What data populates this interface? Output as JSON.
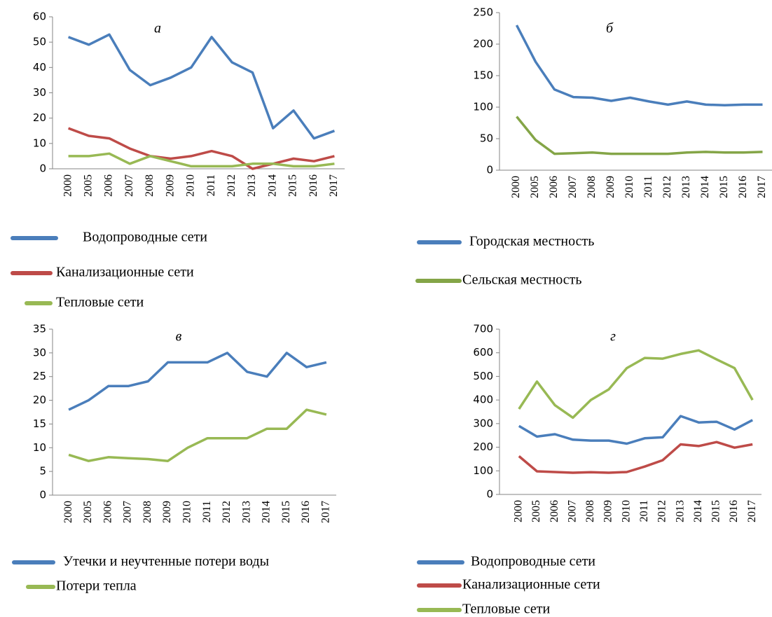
{
  "chart_data": [
    {
      "type": "line",
      "title": "а",
      "categories": [
        "2000",
        "2005",
        "2006",
        "2007",
        "2008",
        "2009",
        "2010",
        "2011",
        "2012",
        "2013",
        "2014",
        "2015",
        "2016",
        "2017"
      ],
      "series": [
        {
          "name": "Водопроводные сети",
          "color": "#4a7ebb",
          "values": [
            52,
            49,
            53,
            39,
            33,
            36,
            40,
            52,
            42,
            38,
            16,
            23,
            12,
            15
          ]
        },
        {
          "name": "Канализационные сети",
          "color": "#be4b48",
          "values": [
            16,
            13,
            12,
            8,
            5,
            4,
            5,
            7,
            5,
            0,
            2,
            4,
            3,
            5
          ]
        },
        {
          "name": "Тепловые сети",
          "color": "#98b954",
          "values": [
            5,
            5,
            6,
            2,
            5,
            3,
            1,
            1,
            1,
            2,
            2,
            1,
            1,
            2
          ]
        }
      ],
      "ylim": [
        0,
        60
      ],
      "yticks": [
        0,
        10,
        20,
        30,
        40,
        50,
        60
      ]
    },
    {
      "type": "line",
      "title": "б",
      "categories": [
        "2000",
        "2005",
        "2006",
        "2007",
        "2008",
        "2009",
        "2010",
        "2011",
        "2012",
        "2013",
        "2014",
        "2015",
        "2016",
        "2017"
      ],
      "series": [
        {
          "name": "Городская местность",
          "color": "#4a7ebb",
          "values": [
            230,
            172,
            128,
            116,
            115,
            110,
            115,
            109,
            104,
            109,
            104,
            103,
            104,
            104
          ]
        },
        {
          "name": "Сельская местность",
          "color": "#84a547",
          "values": [
            85,
            48,
            26,
            27,
            28,
            26,
            26,
            26,
            26,
            28,
            29,
            28,
            28,
            29
          ]
        }
      ],
      "ylim": [
        0,
        250
      ],
      "yticks": [
        0,
        50,
        100,
        150,
        200,
        250
      ]
    },
    {
      "type": "line",
      "title": "в",
      "categories": [
        "2000",
        "2005",
        "2006",
        "2007",
        "2008",
        "2009",
        "2010",
        "2011",
        "2012",
        "2013",
        "2014",
        "2015",
        "2016",
        "2017"
      ],
      "series": [
        {
          "name": "Утечки и неучтенные потери воды",
          "color": "#4a7ebb",
          "values": [
            18,
            20,
            23,
            23,
            24,
            28,
            28,
            28,
            30,
            26,
            25,
            30,
            27,
            28
          ]
        },
        {
          "name": "Потери тепла",
          "color": "#98b954",
          "values": [
            8.5,
            7.2,
            8,
            7.8,
            7.6,
            7.2,
            10,
            12,
            12,
            12,
            14,
            14,
            18,
            17
          ]
        }
      ],
      "ylim": [
        0,
        35
      ],
      "yticks": [
        0,
        5,
        10,
        15,
        20,
        25,
        30,
        35
      ]
    },
    {
      "type": "line",
      "title": "г",
      "categories": [
        "2000",
        "2005",
        "2006",
        "2007",
        "2008",
        "2009",
        "2010",
        "2011",
        "2012",
        "2013",
        "2014",
        "2015",
        "2016",
        "2017"
      ],
      "series": [
        {
          "name": "Водопроводные сети",
          "color": "#4a7ebb",
          "values": [
            290,
            245,
            255,
            232,
            228,
            228,
            215,
            238,
            242,
            332,
            305,
            308,
            275,
            315
          ]
        },
        {
          "name": "Канализационные сети",
          "color": "#be4b48",
          "values": [
            162,
            98,
            95,
            92,
            94,
            92,
            95,
            118,
            145,
            212,
            205,
            222,
            198,
            212
          ]
        },
        {
          "name": "Тепловые сети",
          "color": "#98b954",
          "values": [
            362,
            478,
            378,
            325,
            400,
            445,
            535,
            578,
            575,
            595,
            610,
            572,
            535,
            400
          ]
        }
      ],
      "ylim": [
        0,
        700
      ],
      "yticks": [
        0,
        100,
        200,
        300,
        400,
        500,
        600,
        700
      ]
    }
  ]
}
